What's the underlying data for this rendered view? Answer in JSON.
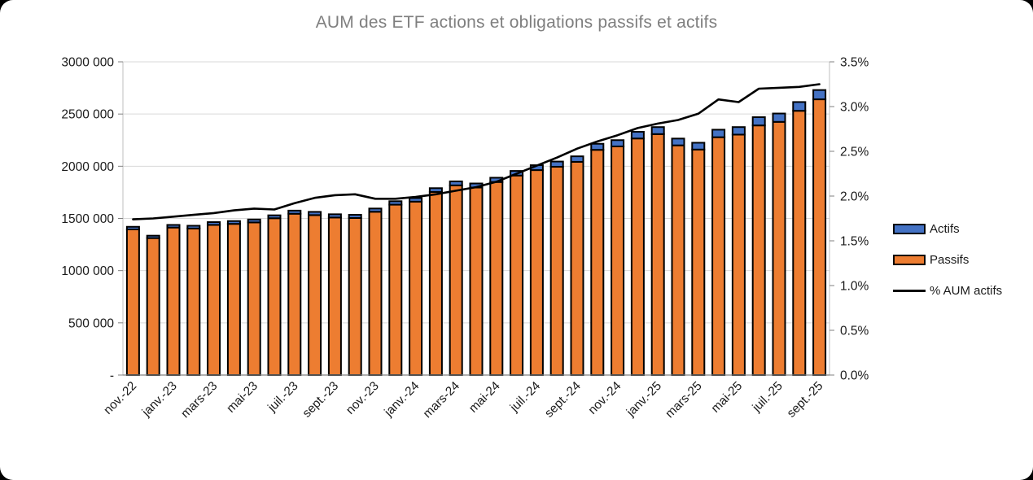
{
  "chart": {
    "title": "AUM des ETF actions et obligations passifs et actifs",
    "title_color": "#7f7f7f"
  },
  "legend": {
    "items": [
      {
        "label": "Actifs",
        "marker": "bar",
        "color": "#4472C4"
      },
      {
        "label": "Passifs",
        "marker": "bar",
        "color": "#ED7D31"
      },
      {
        "label": "% AUM actifs",
        "marker": "line",
        "color": "#000000"
      }
    ]
  },
  "chart_data": {
    "type": "bar",
    "subtype": "stacked-bars-with-secondary-axis-line",
    "title": "AUM des ETF actions et obligations passifs et actifs",
    "categories": [
      "nov.-22",
      "déc.-22",
      "janv.-23",
      "févr.-23",
      "mars-23",
      "avr.-23",
      "mai-23",
      "juin-23",
      "juil.-23",
      "août-23",
      "sept.-23",
      "oct.-23",
      "nov.-23",
      "déc.-23",
      "janv.-24",
      "févr.-24",
      "mars-24",
      "avr.-24",
      "mai-24",
      "juin-24",
      "juil.-24",
      "août-24",
      "sept.-24",
      "oct.-24",
      "nov.-24",
      "déc.-24",
      "janv.-25",
      "févr.-25",
      "mars-25",
      "avr.-25",
      "mai-25",
      "juin-25",
      "juil.-25",
      "août-25",
      "sept.-25"
    ],
    "series": [
      {
        "name": "Passifs",
        "type": "bar",
        "stack": true,
        "axis": "left",
        "color": "#ED7D31",
        "border_color": "#000000",
        "values": [
          1395000,
          1312000,
          1413000,
          1404000,
          1438000,
          1448000,
          1462000,
          1502000,
          1545000,
          1532000,
          1509000,
          1504000,
          1564000,
          1632000,
          1661000,
          1754000,
          1817000,
          1796000,
          1849000,
          1911000,
          1963000,
          1995000,
          2042000,
          2157000,
          2190000,
          2266000,
          2308000,
          2200000,
          2160000,
          2278000,
          2303000,
          2391000,
          2425000,
          2531000,
          2641000
        ]
      },
      {
        "name": "Actifs",
        "type": "bar",
        "stack": true,
        "axis": "left",
        "color": "#4472C4",
        "border_color": "#000000",
        "values": [
          25000,
          23000,
          25000,
          26000,
          27000,
          27000,
          28000,
          28000,
          30000,
          31000,
          31000,
          31000,
          31000,
          33000,
          34000,
          36000,
          38000,
          39000,
          41000,
          44000,
          47000,
          50000,
          53000,
          58000,
          60000,
          64000,
          67000,
          65000,
          65000,
          72000,
          72000,
          79000,
          80000,
          84000,
          89000
        ]
      },
      {
        "name": "% AUM actifs",
        "type": "line",
        "axis": "right",
        "color": "#000000",
        "values": [
          1.74,
          1.75,
          1.77,
          1.79,
          1.81,
          1.84,
          1.86,
          1.85,
          1.92,
          1.98,
          2.01,
          2.02,
          1.97,
          1.97,
          1.99,
          2.02,
          2.06,
          2.1,
          2.16,
          2.25,
          2.34,
          2.43,
          2.53,
          2.61,
          2.68,
          2.76,
          2.81,
          2.85,
          2.92,
          3.08,
          3.05,
          3.2,
          3.21,
          3.22,
          3.25
        ]
      }
    ],
    "left_axis": {
      "min": 0,
      "max": 3000000,
      "step": 500000,
      "tick_labels": [
        "3000 000",
        "2500 000",
        "2000 000",
        "1500 000",
        "1000 000",
        "500 000",
        "-"
      ]
    },
    "right_axis": {
      "min": 0,
      "max": 3.5,
      "step": 0.5,
      "unit": "%",
      "tick_labels": [
        "3.5%",
        "3.0%",
        "2.5%",
        "2.0%",
        "1.5%",
        "1.0%",
        "0.5%",
        "0.0%"
      ]
    },
    "x_axis": {
      "tick_labels": [
        "nov.-22",
        "janv.-23",
        "mars-23",
        "mai-23",
        "juil.-23",
        "sept.-23",
        "nov.-23",
        "janv.-24",
        "mars-24",
        "mai-24",
        "juil.-24",
        "sept.-24",
        "nov.-24",
        "janv.-25",
        "mars-25",
        "mai-25",
        "juil.-25",
        "sept.-25"
      ],
      "label_rotation_deg": -45
    },
    "grid": {
      "horizontal": true,
      "color": "#d9d9d9"
    },
    "legend_position": "right"
  }
}
